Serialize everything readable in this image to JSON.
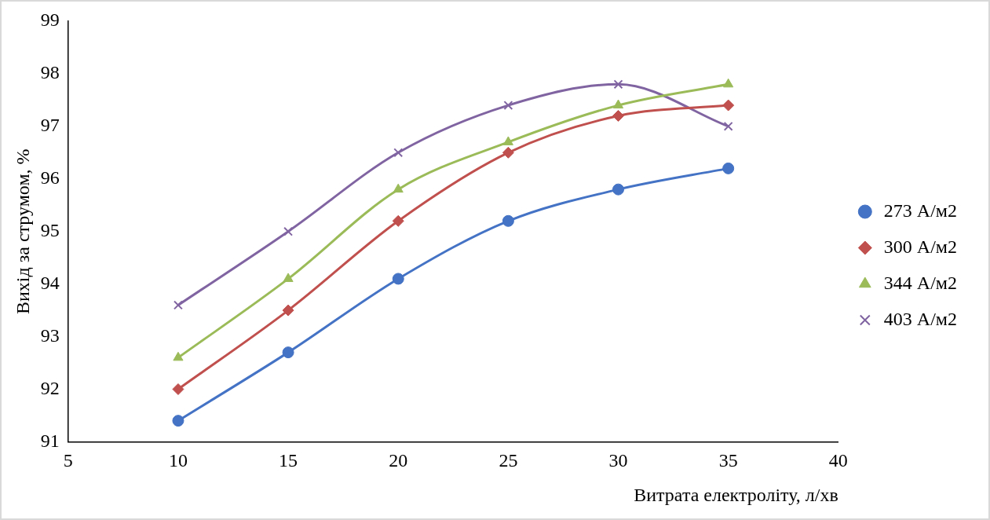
{
  "chart_data": {
    "type": "line",
    "xlabel": "Витрата електроліту, л/хв",
    "ylabel": "Вихід за струмом, %",
    "x": [
      10,
      15,
      20,
      25,
      30,
      35
    ],
    "series": [
      {
        "name": "273 А/м2",
        "color": "#4472c4",
        "marker": "circle",
        "values": [
          91.4,
          92.7,
          94.1,
          95.2,
          95.8,
          96.2
        ]
      },
      {
        "name": "300 А/м2",
        "color": "#c0504d",
        "marker": "diamond",
        "values": [
          92.0,
          93.5,
          95.2,
          96.5,
          97.2,
          97.4
        ]
      },
      {
        "name": "344 А/м2",
        "color": "#9bbb59",
        "marker": "triangle",
        "values": [
          92.6,
          94.1,
          95.8,
          96.7,
          97.4,
          97.8
        ]
      },
      {
        "name": "403 А/м2",
        "color": "#8064a2",
        "marker": "cross",
        "values": [
          93.6,
          95.0,
          96.5,
          97.4,
          97.8,
          97.0
        ]
      }
    ],
    "xlim": [
      5,
      40
    ],
    "xticks": [
      5,
      10,
      15,
      20,
      25,
      30,
      35,
      40
    ],
    "ylim": [
      91,
      99
    ],
    "yticks": [
      91,
      92,
      93,
      94,
      95,
      96,
      97,
      98,
      99
    ],
    "grid": false,
    "legend": "right"
  }
}
